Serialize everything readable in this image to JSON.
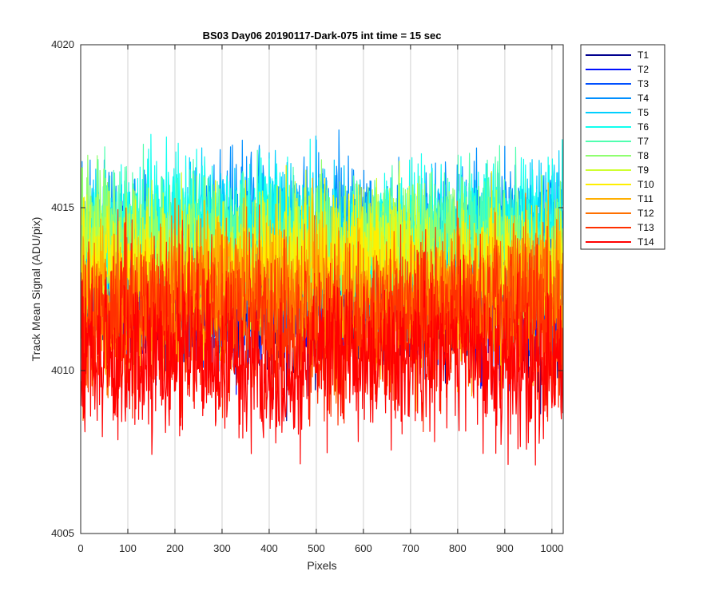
{
  "chart_data": {
    "type": "line",
    "title": "BS03 Day06 20190117-Dark-075 int time = 15 sec",
    "xlabel": "Pixels",
    "ylabel": "Track Mean Signal (ADU/pix)",
    "xlim": [
      0,
      1024
    ],
    "ylim": [
      4005,
      4020
    ],
    "xticks": [
      0,
      100,
      200,
      300,
      400,
      500,
      600,
      700,
      800,
      900,
      1000
    ],
    "yticks": [
      4005,
      4010,
      4015,
      4020
    ],
    "grid": "x",
    "legend_position": "outside-right",
    "n_points": 1024,
    "series": [
      {
        "name": "T1",
        "mean": 4012.0,
        "noise": 1.1,
        "min": 4007.9,
        "max": 4017.6,
        "color": "#00008F"
      },
      {
        "name": "T2",
        "mean": 4012.3,
        "noise": 1.1,
        "min": 4008.1,
        "max": 4016.9,
        "color": "#0010FF"
      },
      {
        "name": "T3",
        "mean": 4012.5,
        "noise": 1.1,
        "min": 4008.3,
        "max": 4016.7,
        "color": "#0050FF"
      },
      {
        "name": "T4",
        "mean": 4014.3,
        "noise": 1.0,
        "min": 4010.5,
        "max": 4017.4,
        "color": "#008FFF"
      },
      {
        "name": "T5",
        "mean": 4014.1,
        "noise": 1.0,
        "min": 4010.3,
        "max": 4017.2,
        "color": "#00CFFF"
      },
      {
        "name": "T6",
        "mean": 4014.2,
        "noise": 1.0,
        "min": 4010.4,
        "max": 4017.8,
        "color": "#10FFEF"
      },
      {
        "name": "T7",
        "mean": 4013.9,
        "noise": 1.0,
        "min": 4010.1,
        "max": 4017.0,
        "color": "#50FFAF"
      },
      {
        "name": "T8",
        "mean": 4013.6,
        "noise": 1.0,
        "min": 4009.9,
        "max": 4016.8,
        "color": "#8FFF70"
      },
      {
        "name": "T9",
        "mean": 4013.3,
        "noise": 1.0,
        "min": 4009.6,
        "max": 4016.5,
        "color": "#CFFF30"
      },
      {
        "name": "T10",
        "mean": 4013.1,
        "noise": 1.0,
        "min": 4009.4,
        "max": 4016.9,
        "color": "#FFEF00"
      },
      {
        "name": "T11",
        "mean": 4012.3,
        "noise": 1.1,
        "min": 4007.7,
        "max": 4015.9,
        "color": "#FFAF00"
      },
      {
        "name": "T12",
        "mean": 4012.0,
        "noise": 1.1,
        "min": 4007.8,
        "max": 4015.6,
        "color": "#FF7000"
      },
      {
        "name": "T13",
        "mean": 4011.4,
        "noise": 1.2,
        "min": 4007.5,
        "max": 4015.2,
        "color": "#FF3000"
      },
      {
        "name": "T14",
        "mean": 4010.3,
        "noise": 1.2,
        "min": 4006.0,
        "max": 4014.4,
        "color": "#FF0000"
      }
    ]
  }
}
